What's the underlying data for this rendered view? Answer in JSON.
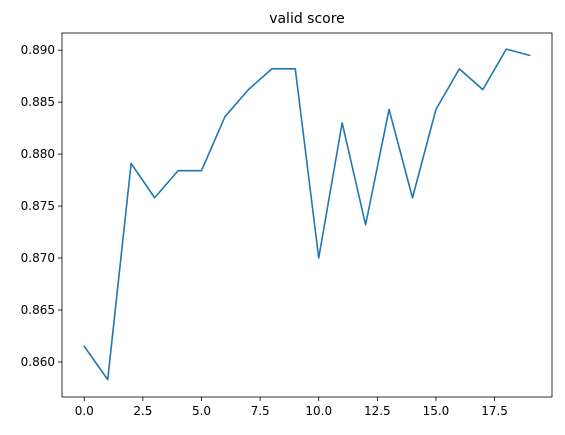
{
  "chart_data": {
    "type": "line",
    "title": "valid score",
    "xlabel": "",
    "ylabel": "",
    "xlim": [
      -0.95,
      19.95
    ],
    "ylim": [
      0.85663,
      0.89165
    ],
    "grid": false,
    "x_ticks": [
      "0.0",
      "2.5",
      "5.0",
      "7.5",
      "10.0",
      "12.5",
      "15.0",
      "17.5"
    ],
    "x_tick_values": [
      0,
      2.5,
      5,
      7.5,
      10,
      12.5,
      15,
      17.5
    ],
    "y_ticks": [
      "0.860",
      "0.865",
      "0.870",
      "0.875",
      "0.880",
      "0.885",
      "0.890"
    ],
    "y_tick_values": [
      0.86,
      0.865,
      0.87,
      0.875,
      0.88,
      0.885,
      0.89
    ],
    "series": [
      {
        "color": "#1f77b4",
        "x": [
          0,
          1,
          2,
          3,
          4,
          5,
          6,
          7,
          8,
          9,
          10,
          11,
          12,
          13,
          14,
          15,
          16,
          17,
          18,
          19
        ],
        "values": [
          0.8615,
          0.8583,
          0.8791,
          0.8758,
          0.8784,
          0.8784,
          0.8836,
          0.8862,
          0.8882,
          0.8882,
          0.87,
          0.883,
          0.8732,
          0.8843,
          0.8758,
          0.8843,
          0.8882,
          0.8862,
          0.8901,
          0.8895
        ]
      }
    ]
  }
}
